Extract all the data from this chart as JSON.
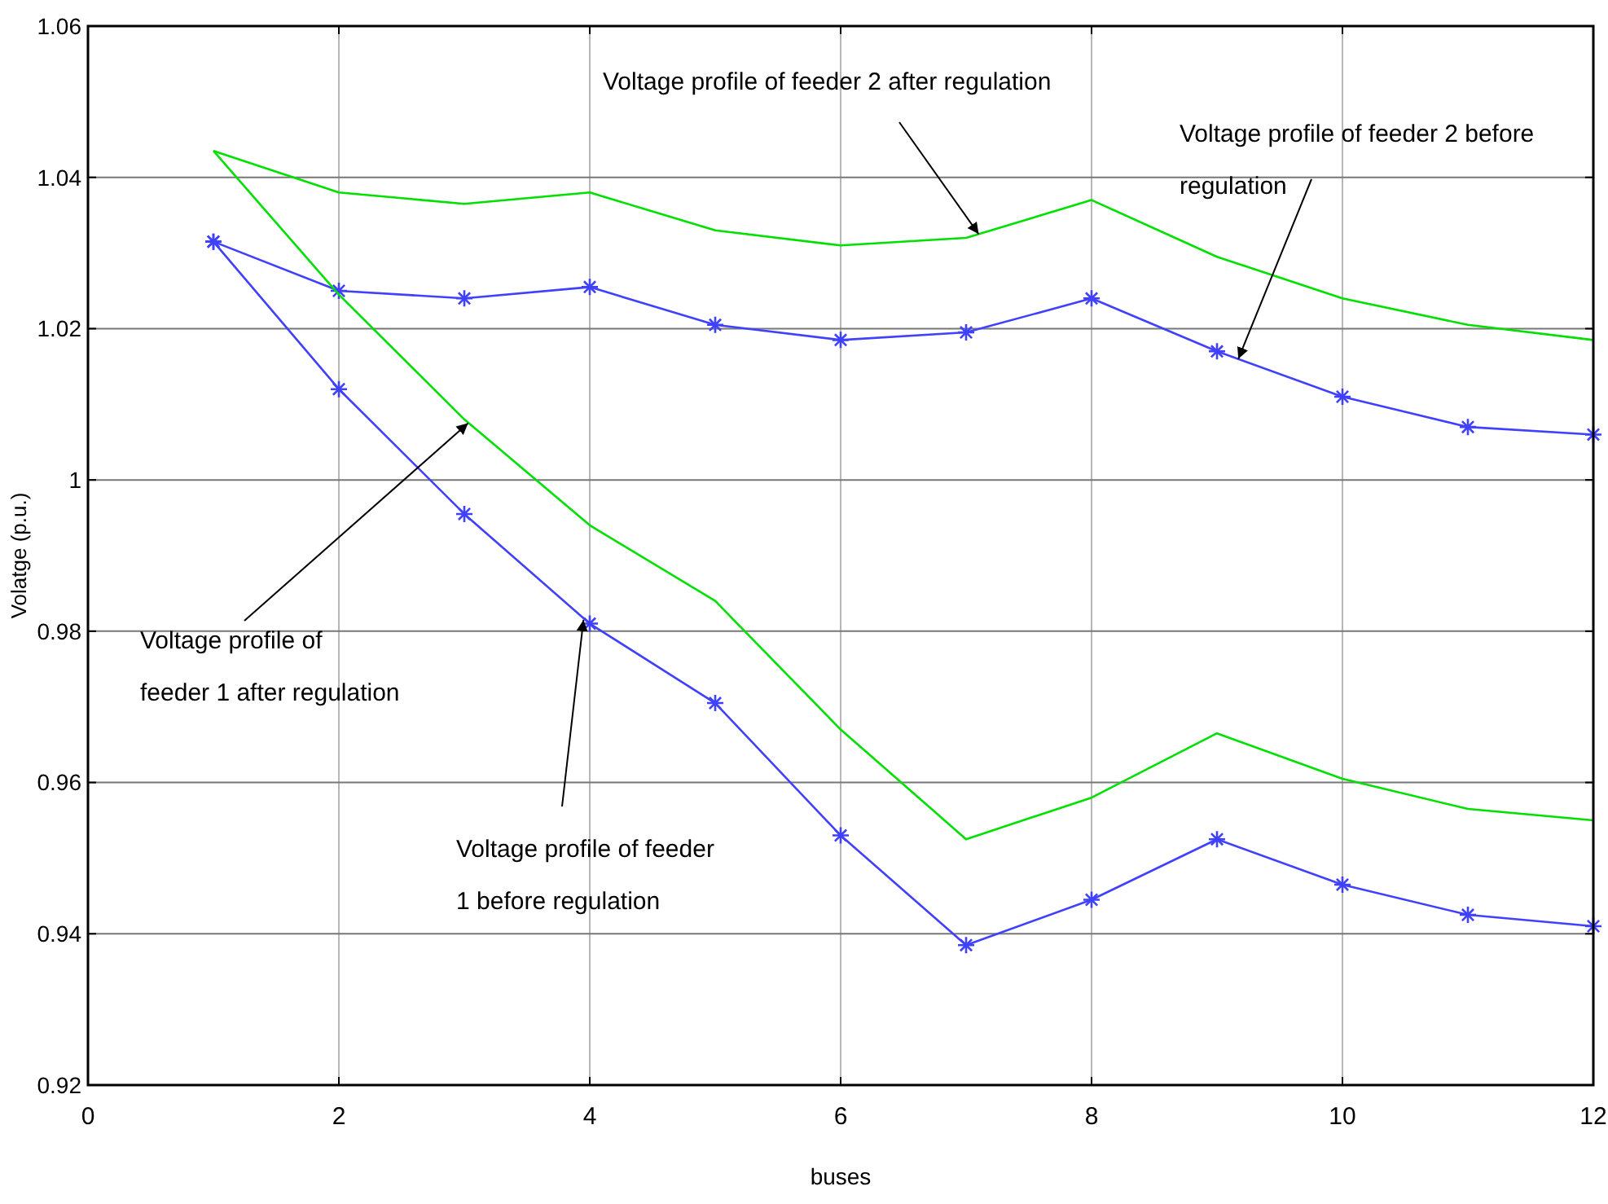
{
  "chart_data": {
    "type": "line",
    "xlabel": "buses",
    "ylabel": "Volatge (p.u.)",
    "x": [
      1,
      2,
      3,
      4,
      5,
      6,
      7,
      8,
      9,
      10,
      11,
      12
    ],
    "series": [
      {
        "color": "#00e000",
        "marker": "none",
        "values": [
          1.0435,
          1.038,
          1.0365,
          1.038,
          1.033,
          1.031,
          1.032,
          1.037,
          1.0295,
          1.024,
          1.0205,
          1.0185
        ]
      },
      {
        "color": "#4040ff",
        "marker": "cross",
        "values": [
          1.0315,
          1.025,
          1.024,
          1.0255,
          1.0205,
          1.0185,
          1.0195,
          1.024,
          1.017,
          1.011,
          1.007,
          1.006
        ]
      },
      {
        "color": "#00e000",
        "marker": "none",
        "values": [
          1.0435,
          1.0245,
          1.008,
          0.994,
          0.984,
          0.967,
          0.9525,
          0.958,
          0.9665,
          0.9605,
          0.9565,
          0.955
        ]
      },
      {
        "color": "#4040ff",
        "marker": "cross",
        "values": [
          1.0315,
          1.012,
          0.9955,
          0.981,
          0.9705,
          0.953,
          0.9385,
          0.9445,
          0.9525,
          0.9465,
          0.9425,
          0.941
        ]
      }
    ],
    "xlim": [
      0,
      12
    ],
    "xticks": [
      0,
      2,
      4,
      6,
      8,
      10,
      12
    ],
    "ylim": [
      0.92,
      1.06
    ],
    "yticks": [
      0.92,
      0.94,
      0.96,
      0.98,
      1,
      1.02,
      1.04,
      1.06
    ],
    "grid": true,
    "annotations": [
      {
        "text": "Voltage profile of feeder 2 after regulation",
        "x": 7.1,
        "y": 1.0325
      },
      {
        "text": "Voltage profile of feeder 2 before regulation",
        "x": 9.17,
        "y": 1.016
      },
      {
        "text": "Voltage profile of feeder 1 after regulation",
        "x": 3.03,
        "y": 1.0075
      },
      {
        "text": "Voltage profile of feeder 1 before regulation",
        "x": 3.95,
        "y": 0.9815
      }
    ]
  }
}
